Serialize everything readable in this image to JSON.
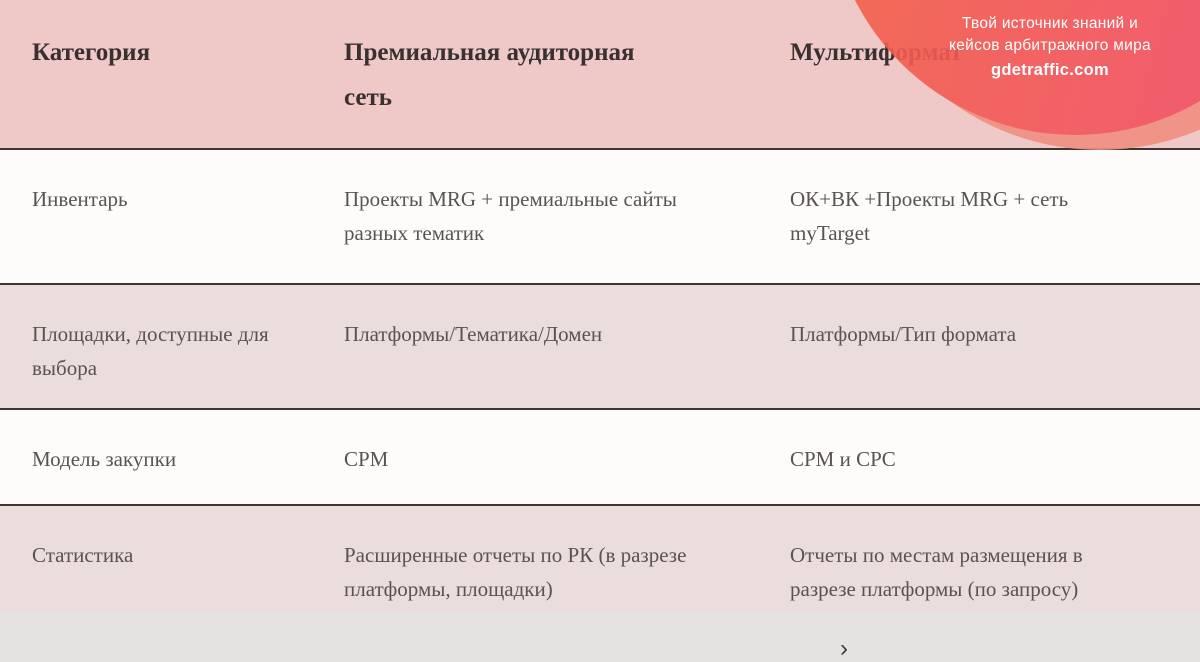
{
  "badge": {
    "line1": "Твой источник знаний и",
    "line2": "кейсов арбитражного мира",
    "domain": "gdetraffic.com"
  },
  "table": {
    "columns": [
      {
        "label": "Категория"
      },
      {
        "label": "Премиальная аудиторная сеть"
      },
      {
        "label": "Мультиформат"
      }
    ],
    "rows": [
      {
        "category": "Инвентарь",
        "premium": "Проекты MRG + премиальные сайты разных тематик",
        "multi": "ОК+ВК +Проекты MRG + сеть myTarget"
      },
      {
        "category": "Площадки, доступные для выбора",
        "premium": "Платформы/Тематика/Домен",
        "multi": "Платформы/Тип формата"
      },
      {
        "category": "Модель закупки",
        "premium": "CPM",
        "multi": "CPM и CPC"
      },
      {
        "category": "Статистика",
        "premium": "Расширенные отчеты по РК (в разрезе платформы, площадки)",
        "multi": "Отчеты по местам размещения в разрезе платформы (по запросу)"
      }
    ]
  },
  "footer": {
    "next_arrow": "›"
  },
  "colors": {
    "header_bg": "#efc9c8",
    "row_alt_bg": "#ebdddb",
    "row_bg": "#fdfcfb",
    "divider": "#3f3634",
    "accent_red": "#f3574f",
    "accent_red2": "#f25066",
    "accent_salmon": "#ef8f81"
  }
}
